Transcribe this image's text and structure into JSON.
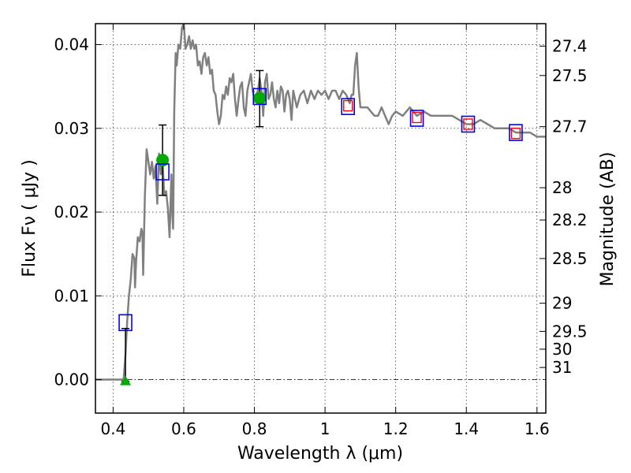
{
  "chart_data": {
    "type": "line",
    "xlabel": "Wavelength  λ (μm)",
    "ylabel": "Flux  Fν  ( μJy )",
    "ylabel_right": "Magnitude (AB)",
    "xlim": [
      0.35,
      1.625
    ],
    "ylim": [
      -0.004,
      0.0425
    ],
    "grid": true,
    "x_ticks": [
      0.4,
      0.6,
      0.8,
      1.0,
      1.2,
      1.4,
      1.6
    ],
    "x_tick_labels": [
      "0.4",
      "0.6",
      "0.8",
      "1",
      "1.2",
      "1.4",
      "1.6"
    ],
    "y_ticks": [
      0.0,
      0.01,
      0.02,
      0.03,
      0.04
    ],
    "y_tick_labels": [
      "0.00",
      "0.01",
      "0.02",
      "0.03",
      "0.04"
    ],
    "mag_ticks": [
      {
        "mag": 27.4,
        "label": "27.4"
      },
      {
        "mag": 27.5,
        "label": "27.5"
      },
      {
        "mag": 27.7,
        "label": "27.7"
      },
      {
        "mag": 28.0,
        "label": "28"
      },
      {
        "mag": 28.2,
        "label": "28.2"
      },
      {
        "mag": 28.5,
        "label": "28.5"
      },
      {
        "mag": 29.0,
        "label": "29"
      },
      {
        "mag": 29.5,
        "label": "29.5"
      },
      {
        "mag": 30.0,
        "label": "30"
      },
      {
        "mag": 31.0,
        "label": "31"
      }
    ],
    "series": [
      {
        "kind": "model-sed",
        "color": "#808080",
        "points": [
          [
            0.35,
            0.0
          ],
          [
            0.4,
            0.0
          ],
          [
            0.425,
            0.0
          ],
          [
            0.43,
            0.0001
          ],
          [
            0.435,
            0.003
          ],
          [
            0.44,
            0.007
          ],
          [
            0.445,
            0.01
          ],
          [
            0.45,
            0.012
          ],
          [
            0.455,
            0.015
          ],
          [
            0.46,
            0.0145
          ],
          [
            0.462,
            0.011
          ],
          [
            0.465,
            0.014
          ],
          [
            0.47,
            0.017
          ],
          [
            0.475,
            0.0165
          ],
          [
            0.48,
            0.018
          ],
          [
            0.483,
            0.0175
          ],
          [
            0.485,
            0.0125
          ],
          [
            0.49,
            0.022
          ],
          [
            0.495,
            0.0275
          ],
          [
            0.5,
            0.026
          ],
          [
            0.505,
            0.0245
          ],
          [
            0.51,
            0.026
          ],
          [
            0.515,
            0.024
          ],
          [
            0.52,
            0.0255
          ],
          [
            0.525,
            0.021
          ],
          [
            0.53,
            0.027
          ],
          [
            0.535,
            0.0245
          ],
          [
            0.54,
            0.026
          ],
          [
            0.545,
            0.022
          ],
          [
            0.55,
            0.0225
          ],
          [
            0.555,
            0.0205
          ],
          [
            0.56,
            0.017
          ],
          [
            0.565,
            0.0245
          ],
          [
            0.568,
            0.0195
          ],
          [
            0.57,
            0.018
          ],
          [
            0.573,
            0.032
          ],
          [
            0.577,
            0.039
          ],
          [
            0.58,
            0.0375
          ],
          [
            0.585,
            0.04
          ],
          [
            0.59,
            0.0395
          ],
          [
            0.595,
            0.042
          ],
          [
            0.6,
            0.0425
          ],
          [
            0.605,
            0.0395
          ],
          [
            0.61,
            0.04
          ],
          [
            0.615,
            0.041
          ],
          [
            0.62,
            0.0395
          ],
          [
            0.625,
            0.0405
          ],
          [
            0.63,
            0.0395
          ],
          [
            0.635,
            0.04
          ],
          [
            0.64,
            0.0375
          ],
          [
            0.645,
            0.038
          ],
          [
            0.65,
            0.0365
          ],
          [
            0.655,
            0.0385
          ],
          [
            0.66,
            0.039
          ],
          [
            0.665,
            0.0375
          ],
          [
            0.67,
            0.0385
          ],
          [
            0.675,
            0.0365
          ],
          [
            0.68,
            0.037
          ],
          [
            0.685,
            0.0345
          ],
          [
            0.69,
            0.034
          ],
          [
            0.695,
            0.032
          ],
          [
            0.7,
            0.0305
          ],
          [
            0.705,
            0.0315
          ],
          [
            0.71,
            0.034
          ],
          [
            0.715,
            0.0335
          ],
          [
            0.72,
            0.035
          ],
          [
            0.725,
            0.034
          ],
          [
            0.73,
            0.036
          ],
          [
            0.735,
            0.0355
          ],
          [
            0.74,
            0.0365
          ],
          [
            0.745,
            0.0335
          ],
          [
            0.75,
            0.0315
          ],
          [
            0.755,
            0.0335
          ],
          [
            0.76,
            0.035
          ],
          [
            0.765,
            0.0355
          ],
          [
            0.77,
            0.0325
          ],
          [
            0.775,
            0.0315
          ],
          [
            0.78,
            0.0345
          ],
          [
            0.785,
            0.0355
          ],
          [
            0.79,
            0.0365
          ],
          [
            0.795,
            0.0345
          ],
          [
            0.8,
            0.0335
          ],
          [
            0.81,
            0.0345
          ],
          [
            0.815,
            0.036
          ],
          [
            0.82,
            0.0345
          ],
          [
            0.825,
            0.0315
          ],
          [
            0.83,
            0.0355
          ],
          [
            0.835,
            0.0365
          ],
          [
            0.84,
            0.0335
          ],
          [
            0.845,
            0.034
          ],
          [
            0.85,
            0.0355
          ],
          [
            0.855,
            0.0335
          ],
          [
            0.86,
            0.0325
          ],
          [
            0.865,
            0.0345
          ],
          [
            0.87,
            0.033
          ],
          [
            0.875,
            0.035
          ],
          [
            0.88,
            0.0345
          ],
          [
            0.885,
            0.032
          ],
          [
            0.89,
            0.034
          ],
          [
            0.895,
            0.0345
          ],
          [
            0.9,
            0.0335
          ],
          [
            0.905,
            0.031
          ],
          [
            0.91,
            0.0345
          ],
          [
            0.92,
            0.0325
          ],
          [
            0.93,
            0.034
          ],
          [
            0.94,
            0.0345
          ],
          [
            0.95,
            0.033
          ],
          [
            0.96,
            0.0345
          ],
          [
            0.97,
            0.0335
          ],
          [
            0.98,
            0.0345
          ],
          [
            0.99,
            0.034
          ],
          [
            1.0,
            0.0345
          ],
          [
            1.01,
            0.0335
          ],
          [
            1.02,
            0.0345
          ],
          [
            1.03,
            0.0345
          ],
          [
            1.04,
            0.0335
          ],
          [
            1.05,
            0.0345
          ],
          [
            1.06,
            0.034
          ],
          [
            1.07,
            0.033
          ],
          [
            1.075,
            0.034
          ],
          [
            1.08,
            0.034
          ],
          [
            1.085,
            0.0375
          ],
          [
            1.09,
            0.039
          ],
          [
            1.095,
            0.035
          ],
          [
            1.1,
            0.0325
          ],
          [
            1.12,
            0.0325
          ],
          [
            1.14,
            0.0315
          ],
          [
            1.15,
            0.0315
          ],
          [
            1.16,
            0.0325
          ],
          [
            1.17,
            0.0315
          ],
          [
            1.18,
            0.0305
          ],
          [
            1.19,
            0.0315
          ],
          [
            1.2,
            0.032
          ],
          [
            1.22,
            0.0315
          ],
          [
            1.24,
            0.0325
          ],
          [
            1.26,
            0.0315
          ],
          [
            1.28,
            0.032
          ],
          [
            1.3,
            0.0315
          ],
          [
            1.32,
            0.0315
          ],
          [
            1.34,
            0.0315
          ],
          [
            1.36,
            0.0315
          ],
          [
            1.38,
            0.031
          ],
          [
            1.4,
            0.0305
          ],
          [
            1.42,
            0.0305
          ],
          [
            1.44,
            0.031
          ],
          [
            1.46,
            0.0305
          ],
          [
            1.48,
            0.03
          ],
          [
            1.5,
            0.03
          ],
          [
            1.52,
            0.03
          ],
          [
            1.54,
            0.0295
          ],
          [
            1.56,
            0.0295
          ],
          [
            1.58,
            0.0295
          ],
          [
            1.6,
            0.029
          ],
          [
            1.625,
            0.029
          ]
        ]
      },
      {
        "kind": "model-synthetic-photometry",
        "marker": "open-square",
        "color": "#0000ff",
        "points": [
          [
            0.435,
            0.0068
          ],
          [
            0.54,
            0.0248
          ],
          [
            0.815,
            0.0338
          ],
          [
            1.065,
            0.0326
          ],
          [
            1.26,
            0.0312
          ],
          [
            1.405,
            0.0305
          ],
          [
            1.54,
            0.0295
          ]
        ]
      },
      {
        "kind": "observed-photometry-small",
        "marker": "open-square-small",
        "color": "#ff0000",
        "points": [
          [
            1.065,
            0.0327
          ],
          [
            1.26,
            0.0313
          ],
          [
            1.405,
            0.0305
          ],
          [
            1.54,
            0.0294
          ]
        ]
      },
      {
        "kind": "observed-photometry",
        "marker": "filled-circle",
        "color": "#00aa00",
        "points": [
          {
            "x": 0.54,
            "y": 0.0262,
            "err_low": 0.022,
            "err_high": 0.0304
          },
          {
            "x": 0.815,
            "y": 0.0336,
            "err_low": 0.0302,
            "err_high": 0.0369
          }
        ]
      },
      {
        "kind": "upper-limit",
        "marker": "filled-triangle",
        "color": "#00aa00",
        "points": [
          {
            "x": 0.435,
            "y": -0.0002,
            "err_low": -0.0002,
            "err_high": 0.0061
          }
        ]
      }
    ]
  }
}
